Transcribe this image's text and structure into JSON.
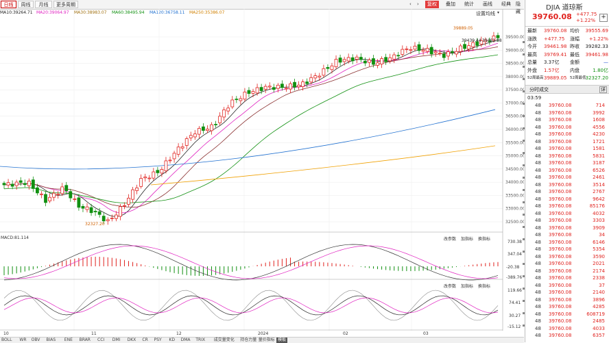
{
  "toolbar": {
    "tabs": [
      "日线",
      "周线",
      "月线",
      "更多周期"
    ],
    "active_tab": 0,
    "right_buttons": [
      "复权",
      "叠加",
      "统计",
      "画线",
      "经典",
      "隐藏"
    ],
    "nav_left": "‹",
    "nav_right": "›"
  },
  "legend": {
    "ma10": "MA10:39264.71",
    "ma20": "MA20:39064.97",
    "ma30": "MA30:38983.07",
    "ma60": "MA60:38495.94",
    "ma120": "MA120:36758.11",
    "ma250": "MA250:35386.07",
    "settings": "设置均线",
    "colors": {
      "ma10": "#222222",
      "ma20": "#e020c0",
      "ma30": "#c09020",
      "ma60": "#109010",
      "ma120": "#2070d0",
      "ma250": "#f0a000"
    }
  },
  "price_axis": [
    "39500.00",
    "39000.00",
    "38500.00",
    "38000.00",
    "37500.00",
    "37000.00",
    "36500.00",
    "36000.00",
    "35500.00",
    "35000.00",
    "34500.00",
    "34000.00",
    "33500.00",
    "33000.00",
    "32500.00"
  ],
  "annotations": {
    "high": "39889.05",
    "low": "32327.20",
    "last_a": "39439.44",
    "last_b": "39461.98",
    "mid_label": "高点"
  },
  "macd": {
    "title": "MACD:81.114",
    "buttons": [
      "改参数",
      "加指标",
      "换指标"
    ],
    "axis": [
      "730.38",
      "347.04",
      "-20.38",
      "-389.76"
    ]
  },
  "kdj": {
    "buttons": [
      "改参数",
      "加指标",
      "换指标"
    ],
    "axis": [
      "119.66",
      "74.41",
      "30.27",
      "-15.12"
    ]
  },
  "x_axis": [
    "10",
    "11",
    "12",
    "2024",
    "02",
    "03"
  ],
  "bottom_tabs": [
    "BOLL",
    "WR",
    "OBV",
    "BIAS",
    "ENE",
    "BRAR",
    "CCI",
    "DMI",
    "DKX",
    "CR",
    "PSY",
    "KD",
    "DMA",
    "TRIX",
    "成交量变化",
    "持仓力量",
    "量价指标",
    "模板"
  ],
  "bottom_active": 17,
  "quote": {
    "name": "DJIA 道琼斯",
    "price": "39760.08",
    "change": "+477.75",
    "change_pct": "+1.22%",
    "add_btn": "+",
    "rows": [
      {
        "l1": "最新",
        "v1": "39760.08",
        "c1": "red",
        "l2": "均价",
        "v2": "39555.69",
        "c2": "red"
      },
      {
        "l1": "涨跌",
        "v1": "+477.75",
        "c1": "red",
        "l2": "涨幅",
        "v2": "+1.22%",
        "c2": "red"
      },
      {
        "l1": "今开",
        "v1": "39461.98",
        "c1": "red",
        "l2": "昨收",
        "v2": "39282.33",
        "c2": "black"
      },
      {
        "l1": "最高",
        "v1": "39769.41",
        "c1": "red",
        "l2": "最低",
        "v2": "39461.98",
        "c2": "red"
      },
      {
        "l1": "总量",
        "v1": "3.37亿",
        "c1": "black",
        "l2": "金额",
        "v2": "—",
        "c2": "blue"
      },
      {
        "l1": "外盘",
        "v1": "1.57亿",
        "c1": "red",
        "l2": "内盘",
        "v2": "1.80亿",
        "c2": "green"
      },
      {
        "l1": "52周最高",
        "v1": "39889.05",
        "c1": "red",
        "l2": "52周最低",
        "v2": "32327.20",
        "c2": "green"
      }
    ],
    "ticks_title": "分时成交",
    "ticks_btn": "详",
    "first_time": "03:59",
    "trades": [
      {
        "p": "48",
        "price": "39760.08",
        "vol": "714",
        "vc": "red"
      },
      {
        "p": "48",
        "price": "39760.08",
        "vol": "3992",
        "vc": "red"
      },
      {
        "p": "48",
        "price": "39760.08",
        "vol": "1608",
        "vc": "red"
      },
      {
        "p": "48",
        "price": "39760.08",
        "vol": "4556",
        "vc": "red"
      },
      {
        "p": "48",
        "price": "39760.08",
        "vol": "4230",
        "vc": "red"
      },
      {
        "p": "48",
        "price": "39760.08",
        "vol": "1721",
        "vc": "red"
      },
      {
        "p": "48",
        "price": "39760.08",
        "vol": "1581",
        "vc": "red"
      },
      {
        "p": "48",
        "price": "39760.08",
        "vol": "5831",
        "vc": "red"
      },
      {
        "p": "48",
        "price": "39760.08",
        "vol": "3187",
        "vc": "red"
      },
      {
        "p": "48",
        "price": "39760.08",
        "vol": "6526",
        "vc": "red"
      },
      {
        "p": "48",
        "price": "39760.08",
        "vol": "2461",
        "vc": "red"
      },
      {
        "p": "48",
        "price": "39760.08",
        "vol": "3514",
        "vc": "red"
      },
      {
        "p": "48",
        "price": "39760.08",
        "vol": "2767",
        "vc": "red"
      },
      {
        "p": "48",
        "price": "39760.08",
        "vol": "9642",
        "vc": "red"
      },
      {
        "p": "48",
        "price": "39760.08",
        "vol": "85176",
        "vc": "red"
      },
      {
        "p": "48",
        "price": "39760.08",
        "vol": "4032",
        "vc": "red"
      },
      {
        "p": "48",
        "price": "39760.08",
        "vol": "3303",
        "vc": "red"
      },
      {
        "p": "48",
        "price": "39760.08",
        "vol": "3909",
        "vc": "red"
      },
      {
        "p": "48",
        "price": "39760.08",
        "vol": "34",
        "vc": "red"
      },
      {
        "p": "48",
        "price": "39760.08",
        "vol": "6146",
        "vc": "red"
      },
      {
        "p": "48",
        "price": "39760.08",
        "vol": "5354",
        "vc": "red"
      },
      {
        "p": "48",
        "price": "39760.08",
        "vol": "3590",
        "vc": "red"
      },
      {
        "p": "48",
        "price": "39760.08",
        "vol": "2021",
        "vc": "red"
      },
      {
        "p": "48",
        "price": "39760.08",
        "vol": "2174",
        "vc": "red"
      },
      {
        "p": "48",
        "price": "39760.08",
        "vol": "2338",
        "vc": "red"
      },
      {
        "p": "48",
        "price": "39760.08",
        "vol": "37",
        "vc": "red"
      },
      {
        "p": "48",
        "price": "39760.08",
        "vol": "2140",
        "vc": "red"
      },
      {
        "p": "48",
        "price": "39760.08",
        "vol": "3896",
        "vc": "red"
      },
      {
        "p": "48",
        "price": "39760.08",
        "vol": "4285",
        "vc": "red"
      },
      {
        "p": "48",
        "price": "39760.08",
        "vol": "608719",
        "vc": "red"
      },
      {
        "p": "48",
        "price": "39760.08",
        "vol": "2485",
        "vc": "red"
      },
      {
        "p": "48",
        "price": "39760.08",
        "vol": "4033",
        "vc": "red"
      },
      {
        "p": "48",
        "price": "39760.08",
        "vol": "6357",
        "vc": "red"
      }
    ]
  }
}
